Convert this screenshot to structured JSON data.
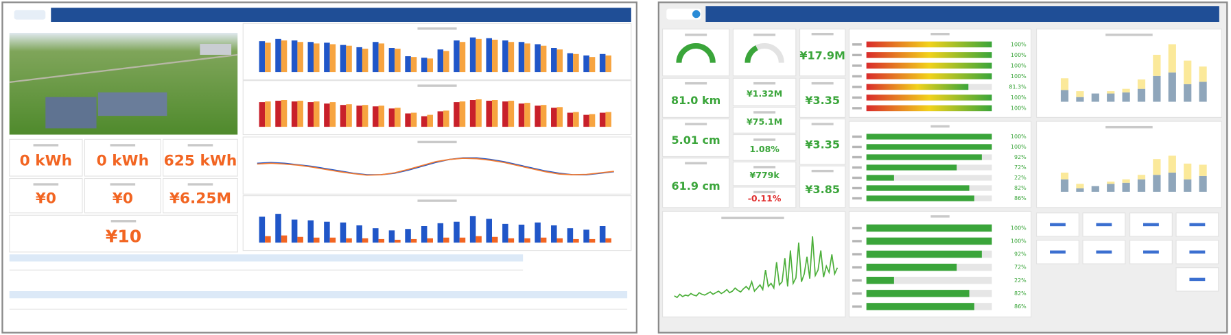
{
  "left_panel": {
    "kpis": [
      "0 kWh",
      "0 kWh",
      "625 kWh",
      "¥0",
      "¥0",
      "¥6.25M",
      "¥10"
    ],
    "charts": [
      {
        "type": "bar",
        "ylim": [
          0,
          100
        ],
        "series": [
          {
            "color": "#2056c8",
            "values": [
              82,
              88,
              84,
              80,
              78,
              72,
              66,
              80,
              64,
              42,
              38,
              60,
              84,
              92,
              90,
              84,
              80,
              74,
              64,
              50,
              44,
              48
            ]
          },
          {
            "color": "#f7a440",
            "values": [
              78,
              84,
              80,
              76,
              74,
              70,
              62,
              76,
              62,
              40,
              36,
              56,
              80,
              88,
              86,
              80,
              76,
              70,
              60,
              48,
              40,
              44
            ]
          }
        ]
      },
      {
        "type": "bar",
        "ylim": [
          0,
          100
        ],
        "series": [
          {
            "color": "#c8202a",
            "values": [
              70,
              74,
              72,
              70,
              66,
              62,
              60,
              58,
              52,
              38,
              30,
              44,
              70,
              76,
              74,
              72,
              66,
              60,
              54,
              40,
              34,
              40
            ]
          },
          {
            "color": "#f7a440",
            "values": [
              72,
              76,
              74,
              72,
              70,
              64,
              62,
              60,
              54,
              40,
              34,
              46,
              72,
              78,
              76,
              74,
              68,
              62,
              56,
              42,
              36,
              42
            ]
          }
        ]
      },
      {
        "type": "line",
        "ylim": [
          0,
          100
        ],
        "series": [
          {
            "color": "#2056c8",
            "values": [
              60,
              62,
              60,
              56,
              52,
              46,
              40,
              34,
              30,
              30,
              34,
              42,
              52,
              62,
              70,
              74,
              74,
              70,
              64,
              56,
              48,
              40,
              34,
              30,
              30,
              34,
              38
            ]
          },
          {
            "color": "#f27a30",
            "values": [
              58,
              60,
              58,
              55,
              50,
              44,
              38,
              33,
              29,
              30,
              35,
              44,
              54,
              64,
              70,
              73,
              72,
              68,
              62,
              54,
              46,
              38,
              32,
              30,
              31,
              35,
              39
            ]
          }
        ]
      },
      {
        "type": "bar",
        "ylim": [
          0,
          100
        ],
        "series": [
          {
            "color": "#2056c8",
            "values": [
              72,
              80,
              64,
              62,
              58,
              56,
              48,
              40,
              34,
              38,
              46,
              54,
              58,
              74,
              66,
              52,
              50,
              56,
              48,
              40,
              36,
              46
            ]
          },
          {
            "color": "#f26522",
            "values": [
              18,
              20,
              16,
              14,
              14,
              12,
              12,
              10,
              8,
              10,
              12,
              14,
              14,
              18,
              16,
              12,
              12,
              14,
              12,
              10,
              10,
              12
            ]
          }
        ]
      }
    ]
  },
  "right_panel": {
    "gauges": [
      {
        "type": "gauge",
        "ylim": [
          0,
          100
        ],
        "color": "#3aa53a",
        "value": 100
      },
      {
        "type": "gauge",
        "ylim": [
          0,
          100
        ],
        "color": "#3aa53a",
        "value": 35
      }
    ],
    "cards": [
      {
        "text": "81.0 km",
        "color": "#3aa53a"
      },
      {
        "text": "5.01 cm",
        "color": "#3aa53a"
      },
      {
        "text": "61.9 cm",
        "color": "#3aa53a"
      },
      {
        "text": "¥1.32M",
        "color": "#3aa53a"
      },
      {
        "text": "¥75.1M",
        "color": "#3aa53a"
      },
      {
        "text": "1.08%",
        "color": "#3aa53a"
      },
      {
        "text": "¥779k",
        "color": "#3aa53a"
      },
      {
        "text": "-0.11%",
        "color": "#e03030"
      },
      {
        "text": "¥17.9M",
        "color": "#3aa53a"
      },
      {
        "text": "¥3.35",
        "color": "#3aa53a"
      },
      {
        "text": "¥3.35",
        "color": "#3aa53a"
      },
      {
        "text": "¥3.85",
        "color": "#3aa53a"
      }
    ],
    "hbars": [
      {
        "type": "hbar",
        "xlim": [
          0,
          100
        ],
        "color": "#3aa53a",
        "values": [
          100,
          100,
          100,
          100,
          81.3,
          100,
          100
        ],
        "value_labels": [
          "100%",
          "100%",
          "100%",
          "100%",
          "81.3%",
          "100%",
          "100%"
        ]
      },
      {
        "type": "hbar",
        "xlim": [
          0,
          100
        ],
        "color": "#3aa53a",
        "values": [
          100,
          100,
          92,
          72,
          22,
          82,
          86
        ],
        "value_labels": [
          "100%",
          "100%",
          "92%",
          "72%",
          "22%",
          "82%",
          "86%"
        ]
      },
      {
        "type": "hbar",
        "xlim": [
          0,
          100
        ],
        "color": "#3aa53a",
        "values": [
          100,
          100,
          92,
          72,
          22,
          82,
          86
        ],
        "value_labels": [
          "100%",
          "100%",
          "92%",
          "72%",
          "22%",
          "82%",
          "86%"
        ]
      }
    ],
    "stacked": [
      {
        "type": "stacked",
        "ylim": [
          0,
          100
        ],
        "series": [
          {
            "color": "#8fa6bb",
            "values": [
              20,
              8,
              14,
              14,
              16,
              22,
              44,
              50,
              30,
              34
            ]
          },
          {
            "color": "#fbe99a",
            "values": [
              20,
              10,
              0,
              4,
              6,
              16,
              36,
              48,
              40,
              26
            ]
          }
        ]
      },
      {
        "type": "stacked",
        "ylim": [
          0,
          100
        ],
        "series": [
          {
            "color": "#8fa6bb",
            "values": [
              22,
              6,
              10,
              14,
              16,
              22,
              30,
              34,
              22,
              28
            ]
          },
          {
            "color": "#fbe99a",
            "values": [
              12,
              8,
              0,
              4,
              6,
              8,
              28,
              30,
              28,
              20
            ]
          }
        ]
      }
    ],
    "line": {
      "type": "line",
      "ylim": [
        0,
        100
      ],
      "series": [
        {
          "color": "#4caf3a",
          "values": [
            12,
            10,
            14,
            11,
            13,
            12,
            15,
            13,
            12,
            16,
            14,
            13,
            15,
            17,
            14,
            16,
            18,
            15,
            17,
            20,
            16,
            18,
            22,
            19,
            17,
            21,
            24,
            20,
            30,
            18,
            22,
            26,
            20,
            45,
            24,
            28,
            22,
            55,
            26,
            30,
            60,
            24,
            70,
            28,
            35,
            80,
            30,
            40,
            62,
            34,
            88,
            38,
            45,
            70,
            36,
            50,
            42,
            65,
            40,
            48
          ]
        }
      ]
    }
  }
}
